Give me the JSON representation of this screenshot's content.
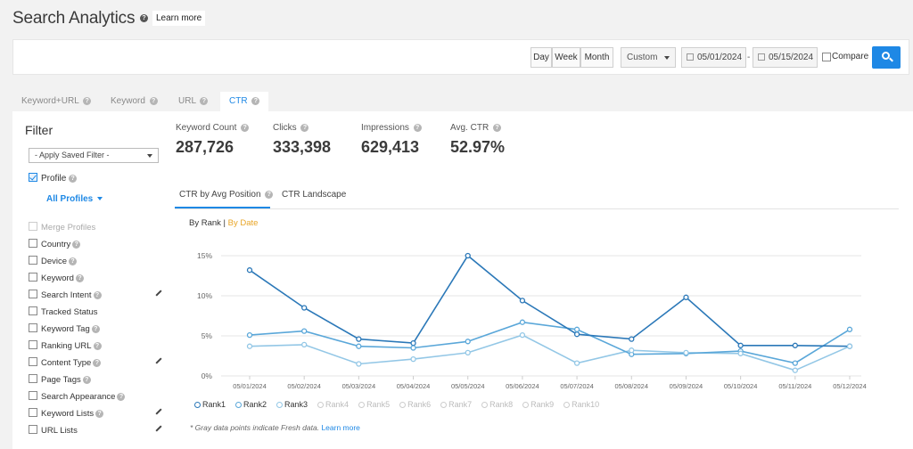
{
  "header": {
    "title": "Search Analytics",
    "learn_more": "Learn more"
  },
  "toolbar": {
    "periods": [
      "Day",
      "Week",
      "Month"
    ],
    "range_select": "Custom",
    "date_from": "05/01/2024",
    "date_to": "05/15/2024",
    "date_separator": "-",
    "compare_label": "Compare"
  },
  "tabs": [
    "Keyword+URL",
    "Keyword",
    "URL",
    "CTR"
  ],
  "active_tab": "CTR",
  "filter": {
    "title": "Filter",
    "saved_filter": "- Apply Saved Filter -",
    "profile_label": "Profile",
    "all_profiles": "All Profiles",
    "items": [
      {
        "label": "Merge Profiles",
        "disabled": true,
        "help": false,
        "pencil": false
      },
      {
        "label": "Country",
        "help": true,
        "pencil": false
      },
      {
        "label": "Device",
        "help": true,
        "pencil": false
      },
      {
        "label": "Keyword",
        "help": true,
        "pencil": false
      },
      {
        "label": "Search Intent",
        "help": true,
        "pencil": true
      },
      {
        "label": "Tracked Status",
        "help": false,
        "pencil": false
      },
      {
        "label": "Keyword Tag",
        "help": true,
        "pencil": false
      },
      {
        "label": "Ranking URL",
        "help": true,
        "pencil": false
      },
      {
        "label": "Content Type",
        "help": true,
        "pencil": true
      },
      {
        "label": "Page Tags",
        "help": true,
        "pencil": false
      },
      {
        "label": "Search Appearance",
        "help": true,
        "pencil": false
      },
      {
        "label": "Keyword Lists",
        "help": true,
        "pencil": true
      },
      {
        "label": "URL Lists",
        "help": false,
        "pencil": true
      }
    ]
  },
  "metrics": [
    {
      "label": "Keyword Count",
      "value": "287,726"
    },
    {
      "label": "Clicks",
      "value": "333,398"
    },
    {
      "label": "Impressions",
      "value": "629,413"
    },
    {
      "label": "Avg. CTR",
      "value": "52.97%"
    }
  ],
  "subtabs": [
    "CTR by Avg Position",
    "CTR Landscape"
  ],
  "view_toggle": {
    "by_rank": "By Rank",
    "separator": "|",
    "by_date": "By Date"
  },
  "chart_data": {
    "type": "line",
    "x": [
      "05/01/2024",
      "05/02/2024",
      "05/03/2024",
      "05/04/2024",
      "05/05/2024",
      "05/06/2024",
      "05/07/2024",
      "05/08/2024",
      "05/09/2024",
      "05/10/2024",
      "05/11/2024",
      "05/12/2024"
    ],
    "yticks": [
      "0%",
      "5%",
      "10%",
      "15%"
    ],
    "ylim": [
      0,
      15
    ],
    "grid": true,
    "series": [
      {
        "name": "Rank1",
        "color": "#2b78b8",
        "values": [
          13.2,
          8.5,
          4.6,
          4.1,
          15.0,
          9.4,
          5.2,
          4.6,
          9.8,
          3.8,
          3.8,
          3.7
        ]
      },
      {
        "name": "Rank2",
        "color": "#5aa7d9",
        "values": [
          5.1,
          5.6,
          3.7,
          3.5,
          4.3,
          6.7,
          5.8,
          2.7,
          2.8,
          3.1,
          1.6,
          5.8
        ]
      },
      {
        "name": "Rank3",
        "color": "#93c7e6",
        "values": [
          3.7,
          3.9,
          1.5,
          2.1,
          2.9,
          5.1,
          1.6,
          3.2,
          2.9,
          2.8,
          0.7,
          3.7
        ]
      }
    ],
    "legend_off": [
      "Rank4",
      "Rank5",
      "Rank6",
      "Rank7",
      "Rank8",
      "Rank9",
      "Rank10"
    ]
  },
  "footnote": {
    "text": "* Gray data points indicate Fresh data.",
    "link": "Learn more"
  }
}
